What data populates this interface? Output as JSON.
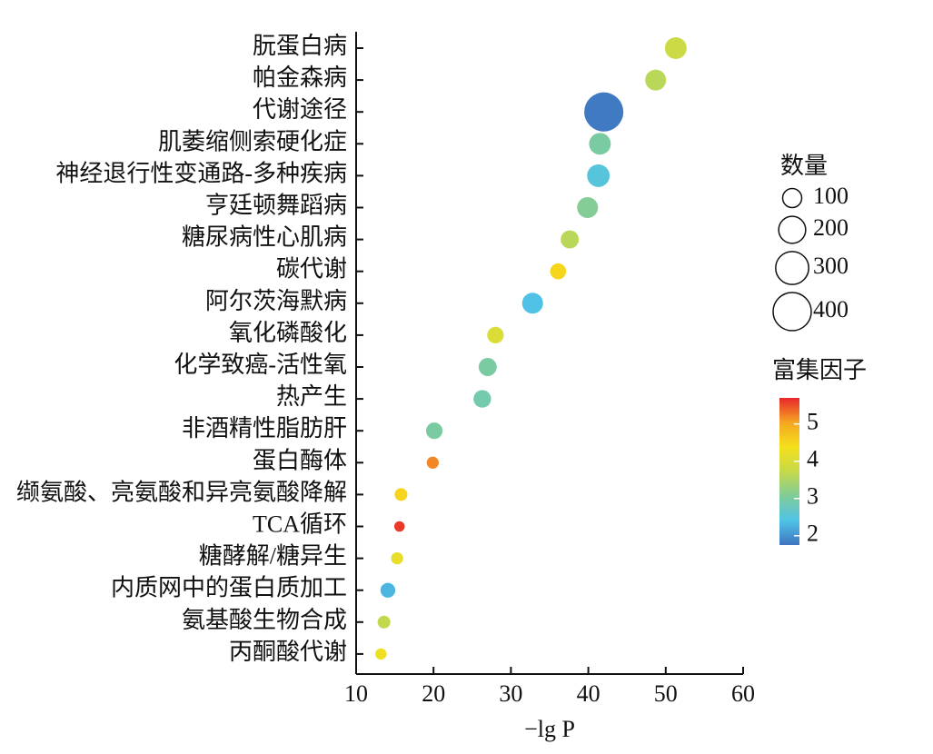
{
  "chart_data": {
    "type": "bubble",
    "categories": [
      "朊蛋白病",
      "帕金森病",
      "代谢途径",
      "肌萎缩侧索硬化症",
      "神经退行性变通路-多种疾病",
      "亨廷顿舞蹈病",
      "糖尿病性心肌病",
      "碳代谢",
      "阿尔茨海默病",
      "氧化磷酸化",
      "化学致癌-活性氧",
      "热产生",
      "非酒精性脂肪肝",
      "蛋白酶体",
      "缬氨酸、亮氨酸和异亮氨酸降解",
      "TCA循环",
      "糖酵解/糖异生",
      "内质网中的蛋白质加工",
      "氨基酸生物合成",
      "丙酮酸代谢"
    ],
    "values": [
      51.3,
      48.7,
      42.0,
      41.5,
      41.3,
      39.9,
      37.6,
      36.1,
      32.8,
      28.0,
      27.0,
      26.3,
      20.1,
      19.9,
      15.8,
      15.6,
      15.3,
      14.1,
      13.6,
      13.2
    ],
    "sizes": [
      130,
      120,
      420,
      130,
      140,
      120,
      90,
      70,
      120,
      75,
      90,
      85,
      75,
      40,
      45,
      30,
      40,
      60,
      45,
      35
    ],
    "factors": [
      3.8,
      3.6,
      1.8,
      3.0,
      2.5,
      3.1,
      3.6,
      4.5,
      2.4,
      4.0,
      3.0,
      2.9,
      3.0,
      5.2,
      4.5,
      5.6,
      4.2,
      2.3,
      3.7,
      4.3
    ],
    "xlabel": "−lg P",
    "xlim": [
      10,
      60
    ],
    "xticks": [
      10,
      20,
      30,
      40,
      50,
      60
    ],
    "size_legend": {
      "title": "数量",
      "values": [
        100,
        200,
        300,
        400
      ]
    },
    "colorbar": {
      "title": "富集因子",
      "lim": [
        1.75,
        5.7
      ],
      "ticks": [
        2,
        3,
        4,
        5
      ],
      "colormap": [
        "#3f74c0",
        "#4fc3e6",
        "#80cc9a",
        "#c6d94a",
        "#f5e01c",
        "#f5a623",
        "#e8262a"
      ]
    }
  }
}
